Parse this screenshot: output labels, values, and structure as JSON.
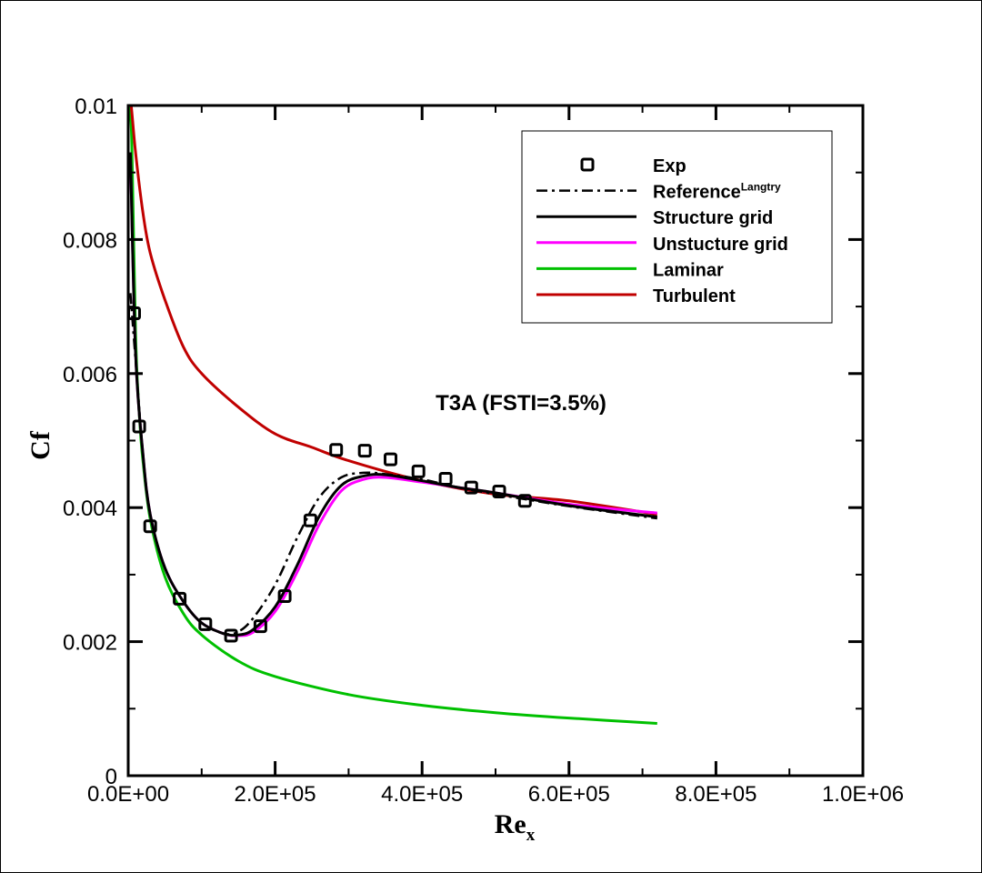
{
  "chart_data": {
    "type": "line",
    "title": "",
    "annotation": "T3A (FSTI=3.5%)",
    "xlabel": "Re",
    "xlabel_sub": "x",
    "ylabel": "Cf",
    "xlim": [
      0,
      1000000
    ],
    "ylim": [
      0,
      0.01
    ],
    "xticks": [
      0,
      200000,
      400000,
      600000,
      800000,
      1000000
    ],
    "xtick_labels": [
      "0.0E+00",
      "2.0E+05",
      "4.0E+05",
      "6.0E+05",
      "8.0E+05",
      "1.0E+06"
    ],
    "yticks": [
      0,
      0.002,
      0.004,
      0.006,
      0.008,
      0.01
    ],
    "ytick_labels": [
      "0",
      "0.002",
      "0.004",
      "0.006",
      "0.008",
      "0.01"
    ],
    "grid": false,
    "legend_position": "top-right",
    "legend": [
      {
        "label": "Exp",
        "sup": "",
        "style": "marker",
        "color": "#000000"
      },
      {
        "label": "Reference",
        "sup": "Langtry",
        "style": "dashdot",
        "color": "#000000"
      },
      {
        "label": "Structure grid",
        "sup": "",
        "style": "solid",
        "color": "#000000"
      },
      {
        "label": "Unstucture grid",
        "sup": "",
        "style": "solid",
        "color": "#ff00ff"
      },
      {
        "label": "Laminar",
        "sup": "",
        "style": "solid",
        "color": "#00c000"
      },
      {
        "label": "Turbulent",
        "sup": "",
        "style": "solid",
        "color": "#c00000"
      }
    ],
    "series": [
      {
        "name": "Laminar",
        "color": "#00c000",
        "style": "solid",
        "x": [
          2000,
          5000,
          10000,
          15000,
          20000,
          30000,
          50000,
          75000,
          100000,
          150000,
          200000,
          300000,
          400000,
          500000,
          600000,
          720000
        ],
        "y": [
          0.01,
          0.0094,
          0.0066,
          0.0054,
          0.0047,
          0.00383,
          0.00297,
          0.00242,
          0.0021,
          0.00171,
          0.00148,
          0.00121,
          0.00105,
          0.00094,
          0.00086,
          0.00078
        ]
      },
      {
        "name": "Turbulent",
        "color": "#c00000",
        "style": "solid",
        "x": [
          3000,
          5000,
          10000,
          20000,
          30000,
          50000,
          75000,
          100000,
          150000,
          200000,
          250000,
          300000,
          400000,
          500000,
          600000,
          720000
        ],
        "y": [
          0.0101,
          0.0099,
          0.0093,
          0.0084,
          0.0078,
          0.0071,
          0.0064,
          0.006,
          0.0055,
          0.0051,
          0.0049,
          0.0047,
          0.0044,
          0.0042,
          0.0041,
          0.0039
        ]
      },
      {
        "name": "Unstucture grid",
        "color": "#ff00ff",
        "style": "solid",
        "x": [
          3000,
          10000,
          20000,
          30000,
          50000,
          75000,
          100000,
          130000,
          150000,
          170000,
          200000,
          230000,
          260000,
          290000,
          320000,
          350000,
          400000,
          450000,
          500000,
          600000,
          720000
        ],
        "y": [
          0.0093,
          0.0063,
          0.0048,
          0.0039,
          0.0031,
          0.0026,
          0.00228,
          0.00212,
          0.00209,
          0.00214,
          0.00245,
          0.00304,
          0.00375,
          0.00425,
          0.00442,
          0.00445,
          0.00438,
          0.0043,
          0.00422,
          0.00405,
          0.00392
        ]
      },
      {
        "name": "Structure grid",
        "color": "#000000",
        "style": "solid",
        "x": [
          3000,
          10000,
          20000,
          30000,
          50000,
          75000,
          100000,
          130000,
          150000,
          170000,
          200000,
          230000,
          260000,
          290000,
          320000,
          350000,
          400000,
          450000,
          500000,
          600000,
          720000
        ],
        "y": [
          0.0093,
          0.0063,
          0.0048,
          0.0039,
          0.0031,
          0.0026,
          0.00228,
          0.00212,
          0.0021,
          0.00218,
          0.00252,
          0.00314,
          0.00387,
          0.00433,
          0.00447,
          0.00449,
          0.0044,
          0.0043,
          0.00422,
          0.00403,
          0.00386
        ]
      },
      {
        "name": "Reference Langtry",
        "color": "#000000",
        "style": "dashdot",
        "x": [
          3000,
          10000,
          20000,
          30000,
          50000,
          75000,
          100000,
          130000,
          150000,
          170000,
          200000,
          230000,
          260000,
          290000,
          320000,
          350000,
          400000,
          450000,
          500000,
          600000,
          720000
        ],
        "y": [
          0.0072,
          0.0062,
          0.0048,
          0.0039,
          0.0031,
          0.0026,
          0.00228,
          0.00212,
          0.00215,
          0.00235,
          0.00285,
          0.00355,
          0.00415,
          0.00445,
          0.00452,
          0.0045,
          0.00442,
          0.0043,
          0.0042,
          0.00402,
          0.00384
        ]
      },
      {
        "name": "Exp",
        "color": "#000000",
        "style": "marker",
        "x": [
          8000,
          15000,
          30000,
          70000,
          105000,
          140000,
          180000,
          213000,
          248000,
          283000,
          322000,
          357000,
          395000,
          432000,
          467000,
          505000,
          540000
        ],
        "y": [
          0.0069,
          0.00521,
          0.00372,
          0.00264,
          0.00226,
          0.00209,
          0.00223,
          0.00268,
          0.00381,
          0.00486,
          0.00485,
          0.00472,
          0.00454,
          0.00443,
          0.0043,
          0.00424,
          0.0041
        ]
      }
    ]
  }
}
